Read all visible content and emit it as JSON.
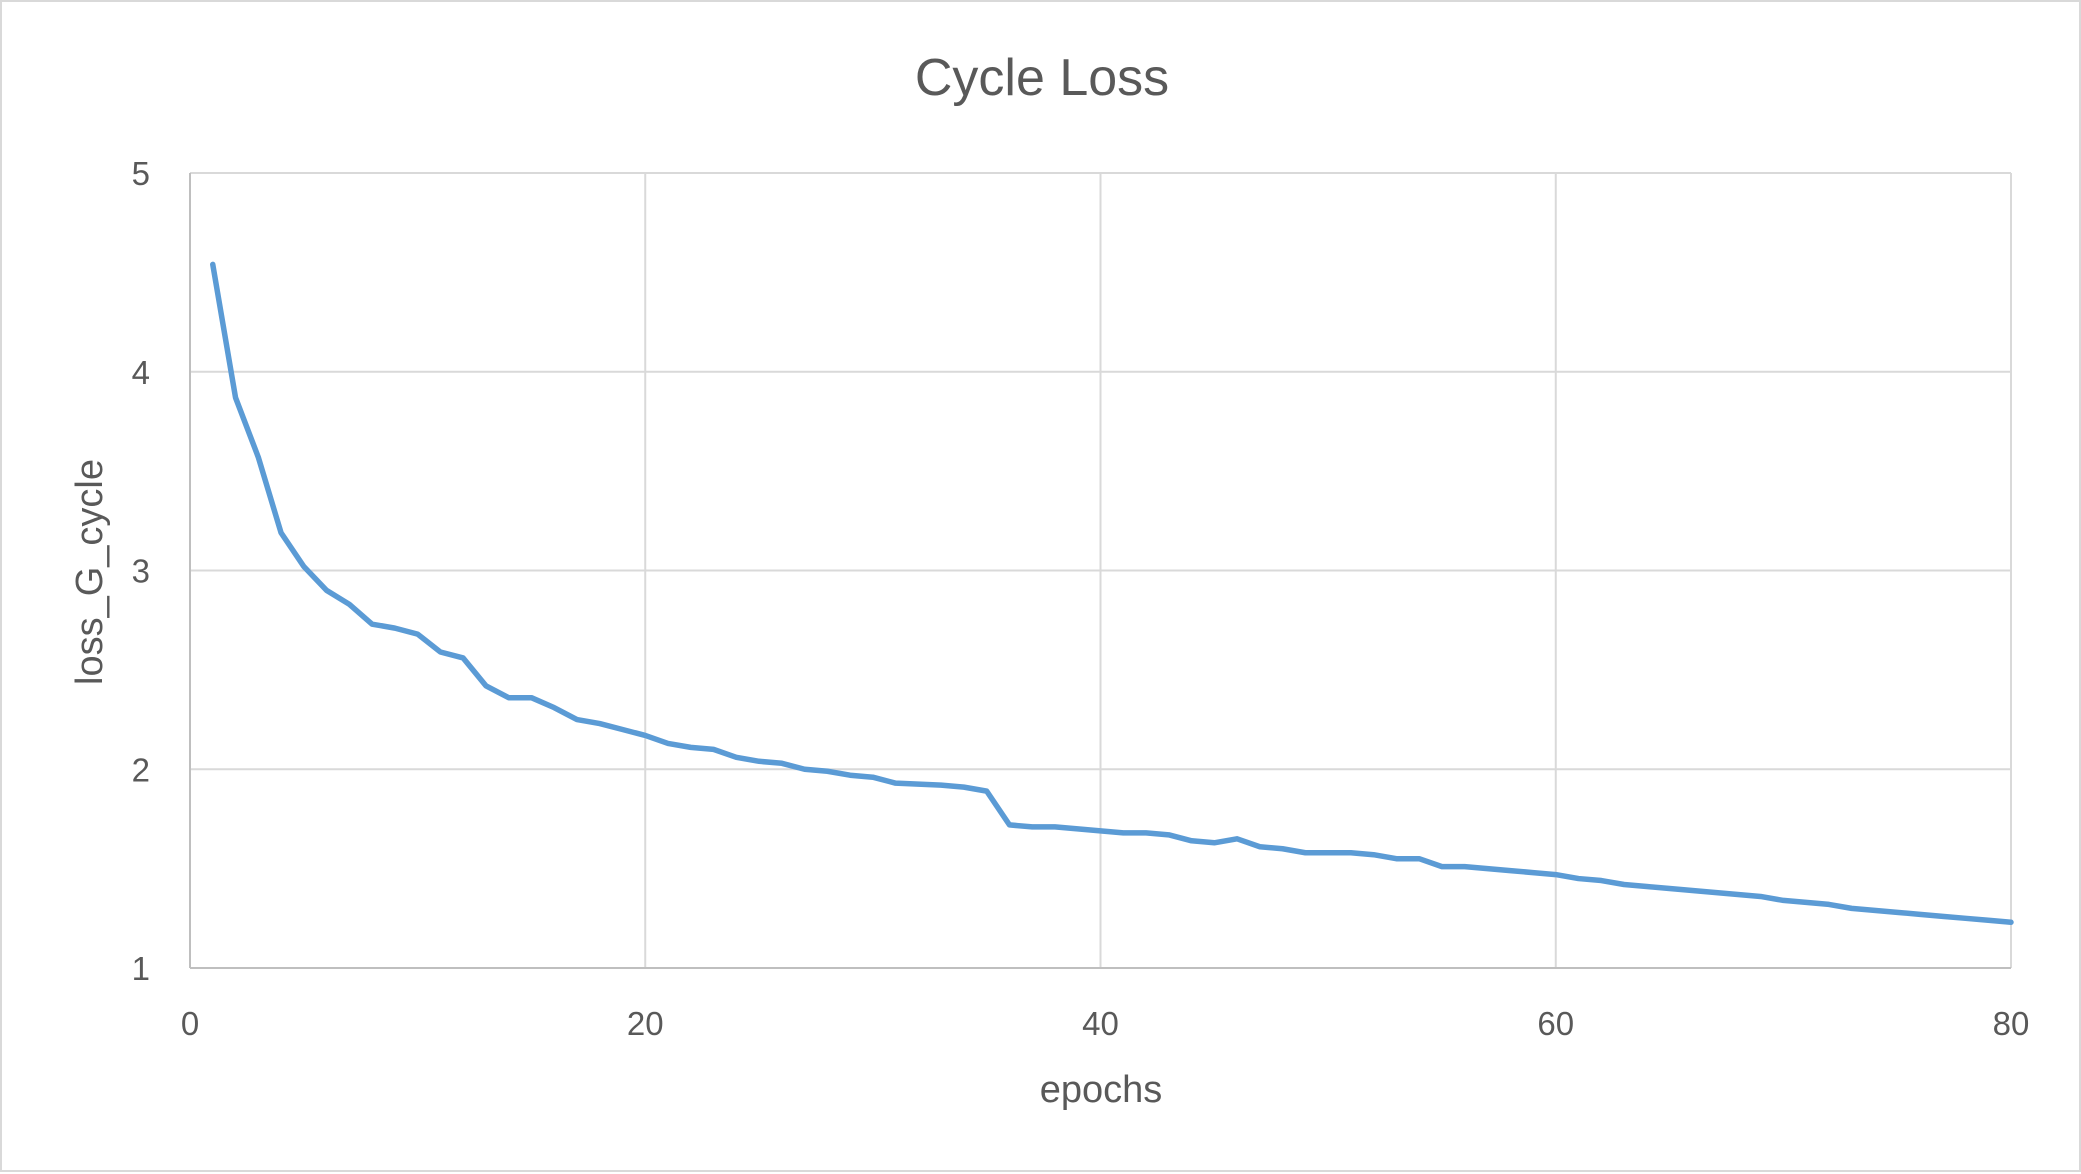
{
  "chart_data": {
    "type": "line",
    "title": "Cycle Loss",
    "xlabel": "epochs",
    "ylabel": "loss_G_cycle",
    "xlim": [
      0,
      80
    ],
    "ylim": [
      1,
      5
    ],
    "x_ticks": [
      0,
      20,
      40,
      60,
      80
    ],
    "y_ticks": [
      1,
      2,
      3,
      4,
      5
    ],
    "grid": true,
    "legend": "none",
    "colors": {
      "series": "#5b9bd5",
      "grid": "#d9d9d9",
      "text": "#595959"
    },
    "series": [
      {
        "x": [
          1,
          2,
          3,
          4,
          5,
          6,
          7,
          8,
          9,
          10,
          11,
          12,
          13,
          14,
          15,
          16,
          17,
          18,
          19,
          20,
          21,
          22,
          23,
          24,
          25,
          26,
          27,
          28,
          29,
          30,
          31,
          32,
          33,
          34,
          35,
          36,
          37,
          38,
          39,
          40,
          41,
          42,
          43,
          44,
          45,
          46,
          47,
          48,
          49,
          50,
          51,
          52,
          53,
          54,
          55,
          56,
          57,
          58,
          59,
          60,
          61,
          62,
          63,
          64,
          65,
          66,
          67,
          68,
          69,
          70,
          71,
          72,
          73,
          74,
          75,
          76,
          77,
          78,
          79,
          80
        ],
        "values": [
          4.54,
          3.87,
          3.57,
          3.19,
          3.02,
          2.9,
          2.83,
          2.73,
          2.71,
          2.68,
          2.59,
          2.56,
          2.42,
          2.36,
          2.36,
          2.31,
          2.25,
          2.23,
          2.2,
          2.17,
          2.13,
          2.11,
          2.1,
          2.06,
          2.04,
          2.03,
          2.0,
          1.99,
          1.97,
          1.96,
          1.93,
          1.925,
          1.92,
          1.91,
          1.89,
          1.72,
          1.71,
          1.71,
          1.7,
          1.69,
          1.68,
          1.68,
          1.67,
          1.64,
          1.63,
          1.65,
          1.61,
          1.6,
          1.58,
          1.58,
          1.58,
          1.57,
          1.55,
          1.55,
          1.51,
          1.51,
          1.5,
          1.49,
          1.48,
          1.47,
          1.45,
          1.44,
          1.42,
          1.41,
          1.4,
          1.39,
          1.38,
          1.37,
          1.36,
          1.34,
          1.33,
          1.32,
          1.3,
          1.29,
          1.28,
          1.27,
          1.26,
          1.25,
          1.24,
          1.23
        ]
      }
    ]
  }
}
